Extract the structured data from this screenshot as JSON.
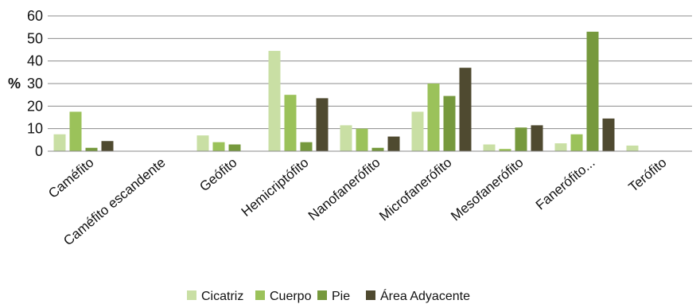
{
  "chart_data": {
    "type": "bar",
    "title": "",
    "xlabel": "",
    "ylabel": "%",
    "ylim": [
      0,
      60
    ],
    "yticks": [
      0,
      10,
      20,
      30,
      40,
      50,
      60
    ],
    "grid": true,
    "legend_position": "bottom",
    "categories": [
      "Caméfito",
      "Caméfito escandente",
      "Geófito",
      "Hemicriptófito",
      "Nanofanerófito",
      "Microfanerófito",
      "Mesofanerófito",
      "Fanerófito...",
      "Terófito"
    ],
    "series": [
      {
        "name": "Cicatriz",
        "color": "#c9dfa4",
        "values": [
          7.5,
          0,
          7,
          44.5,
          11.5,
          17.5,
          3,
          3.5,
          2.5
        ]
      },
      {
        "name": "Cuerpo",
        "color": "#9bc25a",
        "values": [
          17.5,
          0,
          4,
          25,
          10,
          30,
          1,
          7.5,
          0
        ]
      },
      {
        "name": "Pie",
        "color": "#76993d",
        "values": [
          1.5,
          0,
          3,
          4,
          1.5,
          24.5,
          10.5,
          53,
          0
        ]
      },
      {
        "name": "Área Adyacente",
        "color": "#4f4a30",
        "values": [
          4.5,
          0,
          0,
          23.5,
          6.5,
          37,
          11.5,
          14.5,
          0
        ]
      }
    ]
  }
}
